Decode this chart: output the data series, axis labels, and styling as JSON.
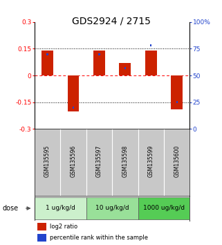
{
  "title": "GDS2924 / 2715",
  "samples": [
    "GSM135595",
    "GSM135596",
    "GSM135597",
    "GSM135598",
    "GSM135599",
    "GSM135600"
  ],
  "log2_ratios": [
    0.14,
    -0.2,
    0.14,
    0.07,
    0.14,
    -0.19
  ],
  "percentile_ranks": [
    70,
    20,
    70,
    57,
    78,
    25
  ],
  "groups": [
    {
      "label": "1 ug/kg/d",
      "indices": [
        0,
        1
      ],
      "color": "#ccf0cc"
    },
    {
      "label": "10 ug/kg/d",
      "indices": [
        2,
        3
      ],
      "color": "#99e099"
    },
    {
      "label": "1000 ug/kg/d",
      "indices": [
        4,
        5
      ],
      "color": "#55cc55"
    }
  ],
  "ylim": [
    -0.3,
    0.3
  ],
  "y2lim": [
    0,
    100
  ],
  "yticks": [
    -0.3,
    -0.15,
    0,
    0.15,
    0.3
  ],
  "y2ticks": [
    0,
    25,
    50,
    75,
    100
  ],
  "y2ticklabels": [
    "0",
    "25",
    "50",
    "75",
    "100%"
  ],
  "hlines": [
    -0.15,
    0.0,
    0.15
  ],
  "hline_styles": [
    "dotted",
    "dashed_red",
    "dotted"
  ],
  "bar_color": "#cc2200",
  "blue_color": "#2244cc",
  "title_fontsize": 10,
  "tick_fontsize": 6.5,
  "bar_width": 0.45,
  "blue_sq_size": 0.008,
  "dose_label": "dose",
  "legend_items": [
    "log2 ratio",
    "percentile rank within the sample"
  ],
  "sample_bg_color": "#c8c8c8",
  "plot_bg": "#ffffff"
}
